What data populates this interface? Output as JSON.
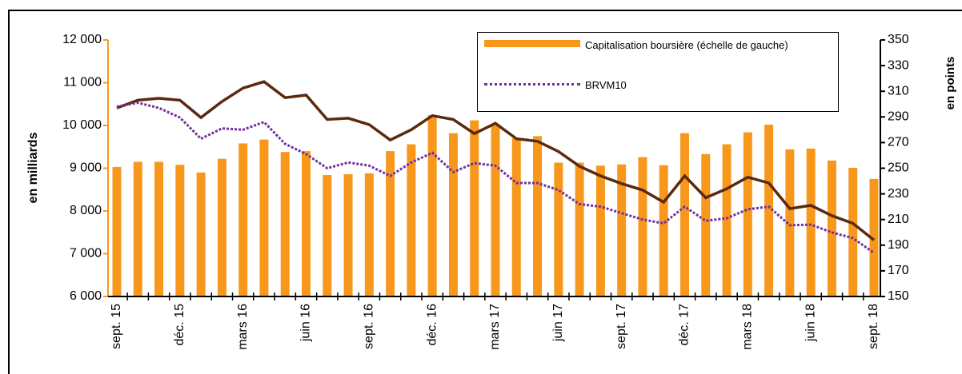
{
  "chart_data": {
    "type": "bar-line",
    "categories": [
      "sept. 15",
      null,
      null,
      "déc. 15",
      null,
      null,
      "mars 16",
      null,
      null,
      "juin 16",
      null,
      null,
      "sept. 16",
      null,
      null,
      "déc. 16",
      null,
      null,
      "mars 17",
      null,
      null,
      "juin 17",
      null,
      null,
      "sept. 17",
      null,
      null,
      "déc. 17",
      null,
      null,
      "mars 18",
      null,
      null,
      "juin 18",
      null,
      null,
      "sept. 18"
    ],
    "series": [
      {
        "name": "Capitalisation boursière (échelle de gauche)",
        "type": "bar",
        "color": "#f7981d",
        "values": [
          9030,
          9150,
          9150,
          9080,
          8900,
          9220,
          9580,
          9670,
          9380,
          9400,
          8840,
          8860,
          8880,
          9400,
          9560,
          10240,
          9820,
          10120,
          10000,
          9700,
          9750,
          9130,
          9130,
          9060,
          9090,
          9260,
          9070,
          9820,
          9330,
          9560,
          9840,
          10020,
          9440,
          9460,
          9180,
          9010,
          8750
        ]
      },
      {
        "type": "line",
        "axis": "y2",
        "color": "#5b2a0e",
        "dash": false,
        "values": [
          297,
          303,
          304.5,
          303,
          289.5,
          302,
          312.5,
          317.5,
          305,
          307,
          288,
          289,
          284,
          272,
          280,
          291,
          288,
          277,
          285,
          273,
          271,
          263,
          251.5,
          244,
          238,
          233,
          223.5,
          244,
          227,
          234,
          243,
          238.5,
          218.5,
          221,
          213,
          207,
          194
        ]
      },
      {
        "name": "BRVM10",
        "type": "line",
        "axis": "y2",
        "color": "#7030a0",
        "dash": true,
        "values": [
          298,
          301,
          297,
          289.5,
          273,
          281,
          280,
          286,
          269,
          261,
          250,
          254.5,
          252,
          244,
          254.5,
          262,
          247,
          254,
          252,
          238.5,
          238.5,
          233,
          222,
          220,
          215,
          210,
          207,
          220,
          209,
          211,
          218,
          220,
          205.5,
          206,
          200,
          195.5,
          184
        ]
      }
    ],
    "ylabel": "en milliards",
    "y2label": "en points",
    "ylim": [
      6000,
      12000
    ],
    "yticks": [
      {
        "value": 6000,
        "label": "6 000"
      },
      {
        "value": 7000,
        "label": "7 000"
      },
      {
        "value": 8000,
        "label": "8 000"
      },
      {
        "value": 9000,
        "label": "9 000"
      },
      {
        "value": 10000,
        "label": "10 000"
      },
      {
        "value": 11000,
        "label": "11 000"
      },
      {
        "value": 12000,
        "label": "12 000"
      }
    ],
    "y2lim": [
      150,
      350
    ],
    "y2ticks": [
      150,
      170,
      190,
      210,
      230,
      250,
      270,
      290,
      310,
      330,
      350
    ]
  }
}
